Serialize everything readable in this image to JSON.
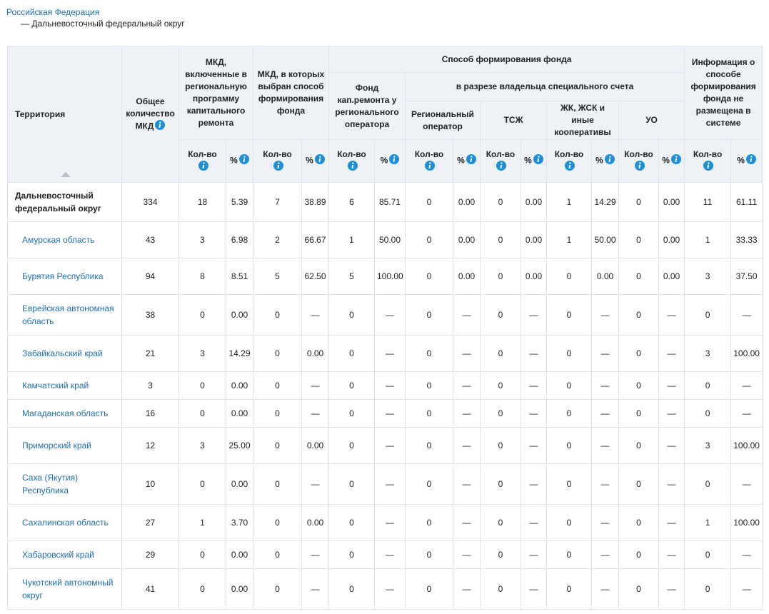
{
  "breadcrumb": {
    "root": "Российская Федерация",
    "current": "— Дальневосточный федеральный округ"
  },
  "header": {
    "territory": "Территория",
    "total": "Общее количество МКД",
    "included": "МКД, включенные в региональную программу капитального ремонта",
    "chosen": "МКД, в которых выбран способ формирования фонда",
    "method": "Способ формирования фонда",
    "no_info": "Информация о способе формирования фонда не размещена в системе",
    "regional_fund": "Фонд кап.ремонта у регионального оператора",
    "by_owner": "в разрезе владельца специального счета",
    "owners": [
      "Региональный оператор",
      "ТСЖ",
      "ЖК, ЖСК и иные кооперативы",
      "УО"
    ],
    "count": "Кол-во",
    "percent": "%"
  },
  "table": {
    "rows": [
      [
        "Дальневосточный федеральный округ",
        "334",
        "18",
        "5.39",
        "7",
        "38.89",
        "6",
        "85.71",
        "0",
        "0.00",
        "0",
        "0.00",
        "1",
        "14.29",
        "0",
        "0.00",
        "11",
        "61.11"
      ],
      [
        "Амурская область",
        "43",
        "3",
        "6.98",
        "2",
        "66.67",
        "1",
        "50.00",
        "0",
        "0.00",
        "0",
        "0.00",
        "1",
        "50.00",
        "0",
        "0.00",
        "1",
        "33.33"
      ],
      [
        "Бурятия Республика",
        "94",
        "8",
        "8.51",
        "5",
        "62.50",
        "5",
        "100.00",
        "0",
        "0.00",
        "0",
        "0.00",
        "0",
        "0.00",
        "0",
        "0.00",
        "3",
        "37.50"
      ],
      [
        "Еврейская автономная область",
        "38",
        "0",
        "0.00",
        "0",
        "—",
        "0",
        "—",
        "0",
        "—",
        "0",
        "—",
        "0",
        "—",
        "0",
        "—",
        "0",
        "—"
      ],
      [
        "Забайкальский край",
        "21",
        "3",
        "14.29",
        "0",
        "0.00",
        "0",
        "—",
        "0",
        "—",
        "0",
        "—",
        "0",
        "—",
        "0",
        "—",
        "3",
        "100.00"
      ],
      [
        "Камчатский край",
        "3",
        "0",
        "0.00",
        "0",
        "—",
        "0",
        "—",
        "0",
        "—",
        "0",
        "—",
        "0",
        "—",
        "0",
        "—",
        "0",
        "—"
      ],
      [
        "Магаданская область",
        "16",
        "0",
        "0.00",
        "0",
        "—",
        "0",
        "—",
        "0",
        "—",
        "0",
        "—",
        "0",
        "—",
        "0",
        "—",
        "0",
        "—"
      ],
      [
        "Приморский край",
        "12",
        "3",
        "25.00",
        "0",
        "0.00",
        "0",
        "—",
        "0",
        "—",
        "0",
        "—",
        "0",
        "—",
        "0",
        "—",
        "3",
        "100.00"
      ],
      [
        "Саха (Якутия) Республика",
        "10",
        "0",
        "0.00",
        "0",
        "—",
        "0",
        "—",
        "0",
        "—",
        "0",
        "—",
        "0",
        "—",
        "0",
        "—",
        "0",
        "—"
      ],
      [
        "Сахалинская область",
        "27",
        "1",
        "3.70",
        "0",
        "0.00",
        "0",
        "—",
        "0",
        "—",
        "0",
        "—",
        "0",
        "—",
        "0",
        "—",
        "1",
        "100.00"
      ],
      [
        "Хабаровский край",
        "29",
        "0",
        "0.00",
        "0",
        "—",
        "0",
        "—",
        "0",
        "—",
        "0",
        "—",
        "0",
        "—",
        "0",
        "—",
        "0",
        "—"
      ],
      [
        "Чукотский автономный округ",
        "41",
        "0",
        "0.00",
        "0",
        "—",
        "0",
        "—",
        "0",
        "—",
        "0",
        "—",
        "0",
        "—",
        "0",
        "—",
        "0",
        "—"
      ]
    ]
  }
}
